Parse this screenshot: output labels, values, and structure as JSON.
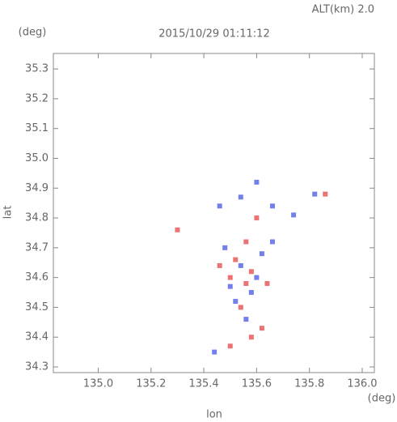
{
  "chart_data": {
    "type": "scatter",
    "title": "2015/10/29 01:11:12",
    "subtitle": "ALT(km) 2.0",
    "y_unit": "(deg)",
    "x_unit": "(deg)",
    "xlabel": "lon",
    "ylabel": "lat",
    "xlim": [
      134.83,
      136.046
    ],
    "ylim": [
      34.281,
      35.352
    ],
    "xticks": [
      {
        "value": 135,
        "label": "135.0"
      },
      135.2,
      135.4,
      135.6,
      135.8,
      {
        "value": 136,
        "label": "136.0"
      }
    ],
    "yticks": [
      34.3,
      34.4,
      34.5,
      34.6,
      34.7,
      34.8,
      34.9,
      {
        "value": 35,
        "label": "35.0"
      },
      35.1,
      35.2,
      35.3
    ],
    "grid": false,
    "series": [
      {
        "color": "#e85a5a",
        "x": [
          135.5,
          135.56,
          135.58,
          135.54,
          135.62,
          135.58,
          135.5,
          135.86,
          135.3,
          135.52,
          135.64,
          135.56,
          135.6,
          135.46
        ],
        "values": [
          34.6,
          34.58,
          34.62,
          34.5,
          34.43,
          34.4,
          34.37,
          34.88,
          34.76,
          34.66,
          34.58,
          34.72,
          34.8,
          34.64
        ]
      },
      {
        "color": "#5a6ae8",
        "x": [
          135.54,
          135.6,
          135.48,
          135.62,
          135.52,
          135.56,
          135.46,
          135.54,
          135.66,
          135.74,
          135.82,
          135.6,
          135.44,
          135.58,
          135.5,
          135.66
        ],
        "values": [
          34.64,
          34.6,
          34.7,
          34.68,
          34.52,
          34.46,
          34.84,
          34.87,
          34.84,
          34.81,
          34.88,
          34.92,
          34.35,
          34.55,
          34.57,
          34.72
        ]
      }
    ]
  }
}
